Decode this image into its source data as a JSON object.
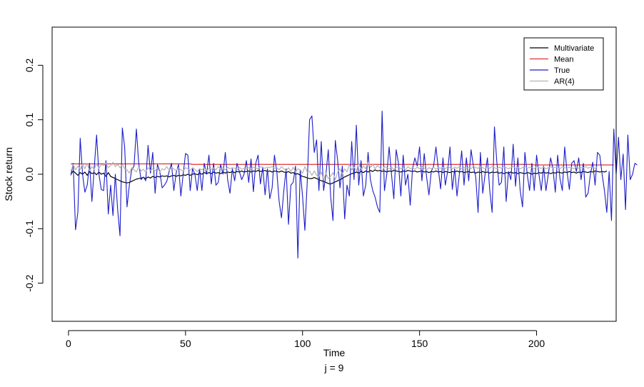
{
  "chart_data": {
    "type": "line",
    "title": "",
    "xlabel": "Time",
    "ylabel": "Stock return",
    "sublabel": "j = 9",
    "xlim": [
      -7,
      234
    ],
    "ylim": [
      -0.27,
      0.27
    ],
    "xticks": [
      0,
      50,
      100,
      150,
      200
    ],
    "yticks": [
      -0.2,
      -0.1,
      0.0,
      0.1,
      0.2
    ],
    "xtick_labels": [
      "0",
      "50",
      "100",
      "150",
      "200"
    ],
    "ytick_labels": [
      "-0.2",
      "-0.1",
      "0.0",
      "0.1",
      "0.2"
    ],
    "grid": false,
    "legend_position": "top-right",
    "x_start": 1,
    "series": [
      {
        "name": "Multivariate",
        "color": "#000000",
        "values": [
          0.0,
          0.006,
          0.002,
          -0.002,
          0.003,
          0.0,
          0.004,
          -0.002,
          0.005,
          0.001,
          0.003,
          -0.001,
          0.004,
          0.0,
          0.002,
          -0.004,
          0.003,
          -0.004,
          -0.006,
          -0.008,
          -0.01,
          -0.012,
          -0.014,
          -0.015,
          -0.016,
          -0.015,
          -0.013,
          -0.011,
          -0.009,
          -0.008,
          -0.007,
          -0.006,
          -0.008,
          -0.005,
          -0.007,
          -0.004,
          -0.006,
          -0.004,
          -0.005,
          -0.003,
          -0.004,
          -0.003,
          -0.005,
          -0.003,
          -0.002,
          -0.004,
          -0.002,
          -0.003,
          -0.001,
          -0.002,
          0.0,
          -0.002,
          0.0,
          0.001,
          -0.001,
          0.002,
          0.0,
          0.003,
          0.001,
          0.003,
          0.001,
          0.004,
          0.002,
          0.003,
          0.001,
          0.004,
          0.002,
          0.004,
          0.003,
          0.005,
          0.003,
          0.005,
          0.004,
          0.006,
          0.004,
          0.005,
          0.006,
          0.004,
          0.006,
          0.005,
          0.007,
          0.005,
          0.006,
          0.007,
          0.005,
          0.006,
          0.004,
          0.006,
          0.005,
          0.004,
          0.006,
          0.004,
          0.003,
          0.005,
          0.002,
          0.003,
          0.0,
          0.001,
          -0.002,
          -0.004,
          -0.005,
          -0.007,
          -0.008,
          -0.008,
          -0.006,
          -0.008,
          -0.01,
          -0.012,
          -0.013,
          -0.015,
          -0.017,
          -0.018,
          -0.016,
          -0.014,
          -0.012,
          -0.01,
          -0.008,
          -0.005,
          -0.003,
          -0.001,
          0.001,
          0.002,
          0.004,
          0.002,
          0.005,
          0.003,
          0.006,
          0.004,
          0.007,
          0.005,
          0.008,
          0.006,
          0.007,
          0.005,
          0.006,
          0.004,
          0.006,
          0.005,
          0.007,
          0.006,
          0.005,
          0.004,
          0.006,
          0.005,
          0.007,
          0.006,
          0.005,
          0.006,
          0.004,
          0.005,
          0.006,
          0.004,
          0.005,
          0.003,
          0.005,
          0.004,
          0.006,
          0.004,
          0.005,
          0.003,
          0.005,
          0.004,
          0.003,
          0.005,
          0.004,
          0.006,
          0.004,
          0.005,
          0.003,
          0.004,
          0.005,
          0.003,
          0.004,
          0.002,
          0.004,
          0.003,
          0.005,
          0.003,
          0.004,
          0.002,
          0.004,
          0.003,
          0.004,
          0.002,
          0.003,
          0.001,
          0.003,
          0.002,
          0.004,
          0.002,
          0.003,
          0.001,
          0.003,
          0.002,
          0.001,
          0.003,
          0.002,
          0.0,
          0.002,
          0.001,
          0.003,
          0.002,
          0.004,
          0.002,
          0.003,
          0.001,
          0.003,
          0.002,
          0.004,
          0.003,
          0.002,
          0.004,
          0.003,
          0.005,
          0.003,
          0.004,
          0.002,
          0.004,
          0.003,
          0.005,
          0.004,
          0.003,
          0.005,
          0.004,
          0.006,
          0.005,
          0.004,
          0.005,
          0.004,
          0.006
        ]
      },
      {
        "name": "Mean",
        "color": "#e03030",
        "values": [
          0.019,
          0.019,
          0.019,
          0.019,
          0.019,
          0.019,
          0.019,
          0.019,
          0.019,
          0.019,
          0.019,
          0.019,
          0.019,
          0.019,
          0.019,
          0.019,
          0.019,
          0.019,
          0.019,
          0.019,
          0.019,
          0.019,
          0.019,
          0.019,
          0.019,
          0.019,
          0.019,
          0.019,
          0.019,
          0.019,
          0.019,
          0.019,
          0.019,
          0.019,
          0.019,
          0.019,
          0.019,
          0.019,
          0.019,
          0.019,
          0.019,
          0.019,
          0.019,
          0.019,
          0.019,
          0.019,
          0.019,
          0.019,
          0.019,
          0.019,
          0.019,
          0.019,
          0.018,
          0.018,
          0.018,
          0.018,
          0.018,
          0.018,
          0.018,
          0.018,
          0.018,
          0.018,
          0.018,
          0.018,
          0.018,
          0.018,
          0.018,
          0.018,
          0.018,
          0.018,
          0.018,
          0.018,
          0.018,
          0.018,
          0.018,
          0.018,
          0.018,
          0.018,
          0.018,
          0.018,
          0.018,
          0.018,
          0.018,
          0.018,
          0.018,
          0.018,
          0.018,
          0.018,
          0.018,
          0.018,
          0.018,
          0.018,
          0.018,
          0.018,
          0.018,
          0.018,
          0.018,
          0.018,
          0.018,
          0.018,
          0.018,
          0.018,
          0.018,
          0.018,
          0.018,
          0.018,
          0.018,
          0.018,
          0.018,
          0.018,
          0.018,
          0.018,
          0.018,
          0.018,
          0.018,
          0.018,
          0.018,
          0.018,
          0.018,
          0.018,
          0.018,
          0.018,
          0.018,
          0.018,
          0.018,
          0.018,
          0.018,
          0.018,
          0.018,
          0.018,
          0.018,
          0.018,
          0.018,
          0.018,
          0.018,
          0.018,
          0.018,
          0.018,
          0.018,
          0.018,
          0.018,
          0.018,
          0.018,
          0.018,
          0.018,
          0.018,
          0.018,
          0.018,
          0.018,
          0.018,
          0.018,
          0.018,
          0.018,
          0.018,
          0.018,
          0.018,
          0.018,
          0.018,
          0.018,
          0.018,
          0.018,
          0.018,
          0.018,
          0.018,
          0.018,
          0.018,
          0.018,
          0.018,
          0.018,
          0.018,
          0.018,
          0.018,
          0.018,
          0.018,
          0.018,
          0.018,
          0.018,
          0.018,
          0.018,
          0.018,
          0.018,
          0.018,
          0.018,
          0.018,
          0.018,
          0.018,
          0.018,
          0.018,
          0.018,
          0.018,
          0.018,
          0.018,
          0.018,
          0.018,
          0.018,
          0.018,
          0.018,
          0.018,
          0.017,
          0.017,
          0.017,
          0.017,
          0.017,
          0.017,
          0.017,
          0.017,
          0.017,
          0.017,
          0.017,
          0.017,
          0.017,
          0.017,
          0.017,
          0.017,
          0.017,
          0.017,
          0.017,
          0.017,
          0.017,
          0.017,
          0.017,
          0.017,
          0.017,
          0.017,
          0.017,
          0.017,
          0.017,
          0.017,
          0.017,
          0.017,
          0.017,
          0.017,
          0.017
        ]
      },
      {
        "name": "True",
        "color": "#1c1cc8",
        "values": [
          -0.002,
          0.02,
          -0.102,
          -0.07,
          0.066,
          0.0,
          -0.033,
          -0.02,
          0.02,
          -0.05,
          0.012,
          0.072,
          0.0,
          -0.028,
          -0.03,
          0.025,
          -0.073,
          -0.02,
          -0.076,
          0.0,
          -0.065,
          -0.113,
          0.085,
          0.05,
          -0.06,
          -0.02,
          0.008,
          0.015,
          0.083,
          0.02,
          -0.01,
          -0.005,
          -0.012,
          0.053,
          0.002,
          0.04,
          -0.035,
          0.018,
          0.005,
          -0.025,
          -0.02,
          -0.013,
          0.005,
          0.02,
          -0.03,
          0.002,
          0.018,
          -0.04,
          0.0,
          0.038,
          0.035,
          -0.03,
          0.01,
          0.0,
          -0.03,
          0.01,
          -0.03,
          0.02,
          0.0,
          0.035,
          -0.018,
          0.02,
          -0.02,
          -0.015,
          0.018,
          0.0,
          0.04,
          -0.01,
          -0.035,
          0.01,
          -0.012,
          0.02,
          0.005,
          -0.01,
          0.0,
          0.025,
          -0.015,
          0.028,
          -0.032,
          0.02,
          0.035,
          -0.018,
          0.013,
          -0.038,
          0.01,
          -0.045,
          -0.025,
          0.035,
          0.005,
          -0.05,
          -0.08,
          -0.03,
          0.01,
          -0.092,
          -0.02,
          -0.015,
          0.015,
          -0.154,
          0.008,
          -0.04,
          -0.103,
          -0.015,
          0.1,
          0.107,
          0.04,
          0.063,
          -0.03,
          0.06,
          -0.03,
          0.0,
          0.045,
          -0.04,
          -0.085,
          0.062,
          0.025,
          -0.025,
          0.015,
          -0.082,
          -0.02,
          -0.04,
          0.06,
          -0.01,
          0.09,
          -0.02,
          0.025,
          -0.04,
          -0.02,
          0.04,
          -0.01,
          -0.03,
          -0.042,
          -0.06,
          -0.07,
          0.116,
          -0.03,
          0.0,
          0.05,
          0.0,
          -0.045,
          0.045,
          0.02,
          -0.04,
          0.035,
          -0.02,
          0.0,
          -0.057,
          0.01,
          0.03,
          0.015,
          0.05,
          -0.012,
          0.038,
          -0.005,
          -0.038,
          0.005,
          0.015,
          0.05,
          0.01,
          -0.027,
          0.03,
          -0.02,
          0.005,
          0.05,
          -0.028,
          0.01,
          -0.04,
          0.0,
          0.043,
          -0.02,
          0.03,
          -0.012,
          0.045,
          0.015,
          -0.005,
          -0.07,
          0.04,
          -0.035,
          0.0,
          0.03,
          -0.03,
          -0.07,
          0.087,
          0.023,
          -0.02,
          -0.015,
          0.05,
          -0.05,
          0.005,
          -0.01,
          0.055,
          -0.022,
          0.03,
          -0.03,
          -0.06,
          0.04,
          0.0,
          -0.03,
          0.02,
          -0.03,
          0.035,
          0.0,
          -0.03,
          0.015,
          -0.03,
          0.0,
          0.03,
          0.01,
          -0.033,
          0.035,
          -0.008,
          -0.03,
          0.05,
          0.005,
          -0.028,
          0.02,
          0.025,
          0.005,
          0.03,
          -0.01,
          0.02,
          -0.042,
          -0.035,
          0.0,
          0.022,
          -0.02,
          0.04,
          0.035,
          0.0,
          -0.03,
          -0.07,
          0.005,
          -0.085,
          0.083,
          0.0,
          0.068,
          -0.01,
          0.037,
          -0.065,
          0.072,
          -0.01,
          0.0,
          0.02,
          0.017
        ]
      },
      {
        "name": "AR(4)",
        "color": "#b4b4b4",
        "values": [
          0.005,
          0.018,
          0.008,
          0.015,
          0.009,
          0.019,
          0.01,
          0.02,
          0.006,
          0.014,
          0.009,
          0.02,
          0.01,
          0.018,
          0.016,
          0.02,
          0.012,
          0.016,
          0.022,
          0.014,
          0.018,
          0.012,
          0.018,
          0.01,
          0.008,
          0.002,
          0.012,
          0.008,
          0.004,
          0.014,
          0.006,
          0.009,
          0.004,
          0.012,
          0.007,
          0.01,
          0.006,
          0.012,
          0.004,
          0.01,
          0.008,
          0.014,
          0.007,
          0.012,
          0.01,
          0.006,
          0.012,
          0.008,
          0.006,
          0.012,
          0.01,
          0.007,
          0.012,
          0.009,
          0.005,
          0.01,
          0.008,
          0.012,
          0.006,
          0.011,
          0.009,
          0.012,
          0.008,
          0.014,
          0.01,
          0.012,
          0.008,
          0.013,
          0.01,
          0.012,
          0.011,
          0.008,
          0.013,
          0.009,
          0.011,
          0.01,
          0.012,
          0.009,
          0.013,
          0.011,
          0.01,
          0.014,
          0.012,
          0.011,
          0.013,
          0.012,
          0.014,
          0.011,
          0.012,
          0.008,
          0.014,
          0.01,
          0.006,
          0.012,
          0.005,
          0.013,
          0.004,
          0.01,
          0.008,
          0.002,
          0.014,
          0.004,
          0.006,
          -0.002,
          0.006,
          -0.002,
          -0.005,
          0.004,
          -0.01,
          0.002,
          -0.008,
          -0.004,
          0.003,
          -0.01,
          0.004,
          0.01,
          0.0,
          0.01,
          0.004,
          0.018,
          0.008,
          0.014,
          0.006,
          0.02,
          0.008,
          0.015,
          0.01,
          0.024,
          0.012,
          0.018,
          0.01,
          0.016,
          0.012,
          0.006,
          0.014,
          0.012,
          0.01,
          0.013,
          0.009,
          0.012,
          0.014,
          0.01,
          0.012,
          0.008,
          0.014,
          0.01,
          0.012,
          0.009,
          0.013,
          0.01,
          0.014,
          0.011,
          0.008,
          0.012,
          0.01,
          0.013,
          0.009,
          0.012,
          0.011,
          0.013,
          0.01,
          0.014,
          0.012,
          0.01,
          0.013,
          0.011,
          0.014,
          0.01,
          0.012,
          0.011,
          0.013,
          0.01,
          0.015,
          0.012,
          0.011,
          0.014,
          0.012,
          0.01,
          0.013,
          0.011,
          0.014,
          0.012,
          0.01,
          0.013,
          0.011,
          0.014,
          0.012,
          0.01,
          0.012,
          0.014,
          0.011,
          0.013,
          0.01,
          0.012,
          0.014,
          0.011,
          0.013,
          0.012,
          0.01,
          0.014,
          0.012,
          0.011,
          0.013,
          0.01,
          0.012,
          0.014,
          0.011,
          0.013,
          0.012,
          0.01,
          0.014,
          0.012,
          0.011,
          0.013,
          0.012,
          0.01,
          0.014,
          0.011,
          0.013,
          0.012,
          0.014,
          0.011,
          0.013,
          0.012,
          0.011,
          0.014
        ]
      }
    ]
  }
}
